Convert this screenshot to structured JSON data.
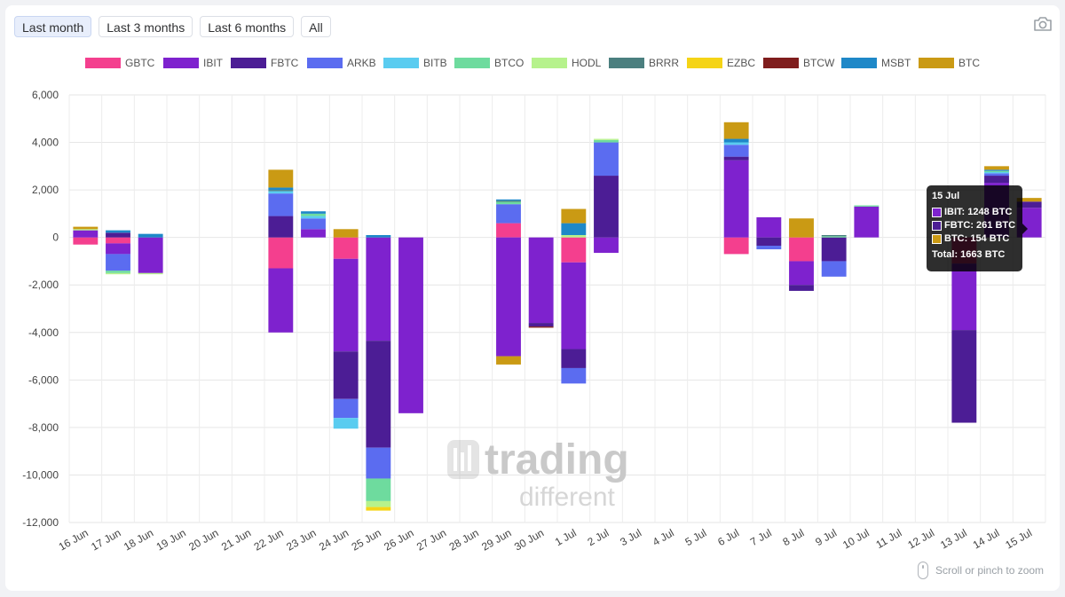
{
  "range_buttons": [
    {
      "label": "Last month",
      "active": true
    },
    {
      "label": "Last 3 months",
      "active": false
    },
    {
      "label": "Last 6 months",
      "active": false
    },
    {
      "label": "All",
      "active": false
    }
  ],
  "icons": {
    "camera": "camera-icon",
    "mouse": "mouse-icon",
    "logo": "trading-different-logo"
  },
  "watermark": {
    "line1": "trading",
    "line2": "different"
  },
  "zoom_hint": "Scroll or pinch to zoom",
  "tooltip": {
    "title": "15 Jul",
    "rows": [
      {
        "label": "IBIT: 1248 BTC",
        "color": "#7E22CE"
      },
      {
        "label": "FBTC: 261 BTC",
        "color": "#4C1D95"
      },
      {
        "label": "BTC: 154 BTC",
        "color": "#CA9A14"
      }
    ],
    "total": "Total: 1663 BTC"
  },
  "chart_data": {
    "type": "bar",
    "stacked": true,
    "ylim": [
      -12000,
      6000
    ],
    "yticks": [
      6000,
      4000,
      2000,
      0,
      -2000,
      -4000,
      -6000,
      -8000,
      -10000,
      -12000
    ],
    "ytick_labels": [
      "6,000",
      "4,000",
      "2,000",
      "0",
      "-2,000",
      "-4,000",
      "-6,000",
      "-8,000",
      "-10,000",
      "-12,000"
    ],
    "grid": true,
    "legend_position": "top",
    "categories": [
      "16 Jun",
      "17 Jun",
      "18 Jun",
      "19 Jun",
      "20 Jun",
      "21 Jun",
      "22 Jun",
      "23 Jun",
      "24 Jun",
      "25 Jun",
      "26 Jun",
      "27 Jun",
      "28 Jun",
      "29 Jun",
      "30 Jun",
      "1 Jul",
      "2 Jul",
      "3 Jul",
      "4 Jul",
      "5 Jul",
      "6 Jul",
      "7 Jul",
      "8 Jul",
      "9 Jul",
      "10 Jul",
      "11 Jul",
      "12 Jul",
      "13 Jul",
      "14 Jul",
      "15 Jul"
    ],
    "series": [
      {
        "name": "GBTC",
        "color": "#F43F8E",
        "values": [
          -300,
          -250,
          0,
          0,
          0,
          0,
          -1300,
          0,
          -900,
          0,
          0,
          0,
          0,
          600,
          0,
          -1050,
          0,
          0,
          0,
          0,
          -700,
          0,
          -1000,
          0,
          0,
          0,
          0,
          -1100,
          0,
          0
        ]
      },
      {
        "name": "IBIT",
        "color": "#7E22CE",
        "values": [
          300,
          -450,
          -1500,
          0,
          0,
          0,
          -2700,
          350,
          -3900,
          -4350,
          -7400,
          0,
          0,
          -5000,
          -3600,
          -3650,
          -650,
          0,
          0,
          0,
          3250,
          850,
          -1000,
          0,
          1300,
          0,
          0,
          -2800,
          2300,
          1248
        ]
      },
      {
        "name": "FBTC",
        "color": "#4C1D95",
        "values": [
          0,
          200,
          0,
          0,
          0,
          0,
          900,
          0,
          -2000,
          -4500,
          0,
          0,
          0,
          0,
          -150,
          -800,
          2600,
          0,
          0,
          0,
          150,
          -350,
          -250,
          -1000,
          0,
          0,
          0,
          -3900,
          300,
          261
        ]
      },
      {
        "name": "ARKB",
        "color": "#5B6CF0",
        "values": [
          0,
          -700,
          0,
          0,
          0,
          0,
          950,
          450,
          -800,
          -1300,
          0,
          0,
          0,
          800,
          0,
          -650,
          1400,
          0,
          0,
          0,
          500,
          -150,
          0,
          -650,
          0,
          0,
          0,
          0,
          100,
          0
        ]
      },
      {
        "name": "BITB",
        "color": "#5ACCF0",
        "values": [
          0,
          0,
          0,
          0,
          0,
          0,
          100,
          100,
          -450,
          0,
          0,
          0,
          0,
          0,
          0,
          0,
          0,
          0,
          0,
          0,
          100,
          0,
          0,
          0,
          0,
          0,
          0,
          0,
          50,
          0
        ]
      },
      {
        "name": "BTCO",
        "color": "#6EDB9E",
        "values": [
          0,
          -100,
          0,
          0,
          0,
          0,
          0,
          100,
          0,
          -950,
          0,
          0,
          0,
          100,
          0,
          0,
          100,
          0,
          0,
          0,
          0,
          0,
          0,
          50,
          50,
          0,
          0,
          0,
          50,
          0
        ]
      },
      {
        "name": "HODL",
        "color": "#B6F28C",
        "values": [
          50,
          -50,
          -50,
          0,
          0,
          0,
          0,
          0,
          0,
          -250,
          0,
          0,
          0,
          0,
          0,
          100,
          50,
          0,
          0,
          0,
          0,
          0,
          0,
          0,
          0,
          0,
          0,
          0,
          0,
          0
        ]
      },
      {
        "name": "BRRR",
        "color": "#4B7F7F",
        "values": [
          0,
          0,
          0,
          0,
          0,
          0,
          50,
          0,
          0,
          0,
          0,
          0,
          0,
          50,
          0,
          0,
          0,
          0,
          0,
          0,
          0,
          0,
          0,
          50,
          0,
          0,
          0,
          0,
          0,
          0
        ]
      },
      {
        "name": "EZBC",
        "color": "#F5D416",
        "values": [
          0,
          0,
          0,
          0,
          0,
          0,
          0,
          0,
          0,
          -150,
          0,
          0,
          0,
          0,
          0,
          0,
          0,
          0,
          0,
          0,
          0,
          0,
          0,
          0,
          0,
          0,
          0,
          0,
          0,
          0
        ]
      },
      {
        "name": "BTCW",
        "color": "#7F1D1D",
        "values": [
          0,
          0,
          0,
          0,
          0,
          0,
          0,
          0,
          0,
          0,
          0,
          0,
          0,
          0,
          -50,
          0,
          0,
          0,
          0,
          0,
          0,
          0,
          0,
          0,
          0,
          0,
          0,
          0,
          0,
          0
        ]
      },
      {
        "name": "MSBT",
        "color": "#1E88C8",
        "values": [
          0,
          100,
          150,
          0,
          0,
          0,
          100,
          100,
          0,
          100,
          0,
          0,
          0,
          50,
          0,
          500,
          0,
          0,
          0,
          0,
          150,
          0,
          0,
          0,
          0,
          0,
          0,
          0,
          50,
          0
        ]
      },
      {
        "name": "BTC",
        "color": "#CA9A14",
        "values": [
          100,
          0,
          0,
          0,
          0,
          0,
          750,
          0,
          350,
          0,
          0,
          0,
          0,
          -350,
          0,
          600,
          0,
          0,
          0,
          0,
          700,
          0,
          800,
          0,
          0,
          0,
          0,
          0,
          150,
          154
        ]
      }
    ]
  }
}
